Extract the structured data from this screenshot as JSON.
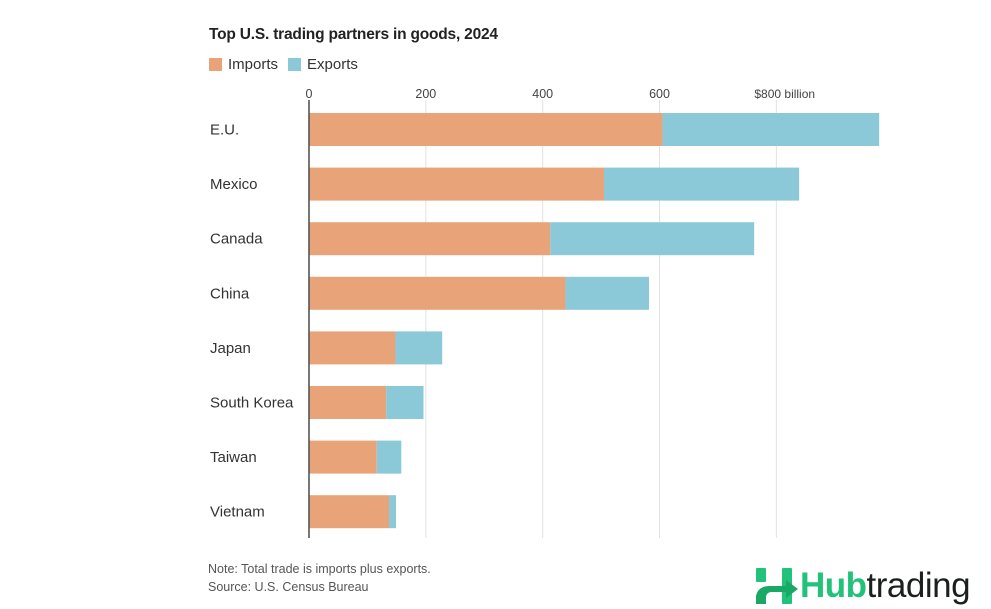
{
  "chart_data": {
    "type": "bar",
    "orientation": "horizontal",
    "stacked": true,
    "title": "Top U.S. trading partners in goods, 2024",
    "xlabel": "",
    "ylabel": "",
    "unit_label": "billion",
    "xlim": [
      0,
      1000
    ],
    "xticks": [
      0,
      200,
      400,
      600,
      800
    ],
    "xtick_labels": [
      "0",
      "200",
      "400",
      "600",
      "$800 billion"
    ],
    "grid": true,
    "legend_position": "top-left",
    "categories": [
      "E.U.",
      "Mexico",
      "Canada",
      "China",
      "Japan",
      "South Korea",
      "Taiwan",
      "Vietnam"
    ],
    "series": [
      {
        "name": "Imports",
        "color": "#e8a478",
        "values": [
          605,
          505,
          413,
          439,
          148,
          132,
          116,
          137
        ]
      },
      {
        "name": "Exports",
        "color": "#8bc8d8",
        "values": [
          371,
          334,
          349,
          143,
          80,
          64,
          42,
          12
        ]
      }
    ],
    "note": "Note: Total trade is imports plus exports.",
    "source": "Source: U.S. Census Bureau"
  },
  "brand": {
    "name_part1": "Hub",
    "name_part2": "trading",
    "accent_color": "#22c27a"
  }
}
